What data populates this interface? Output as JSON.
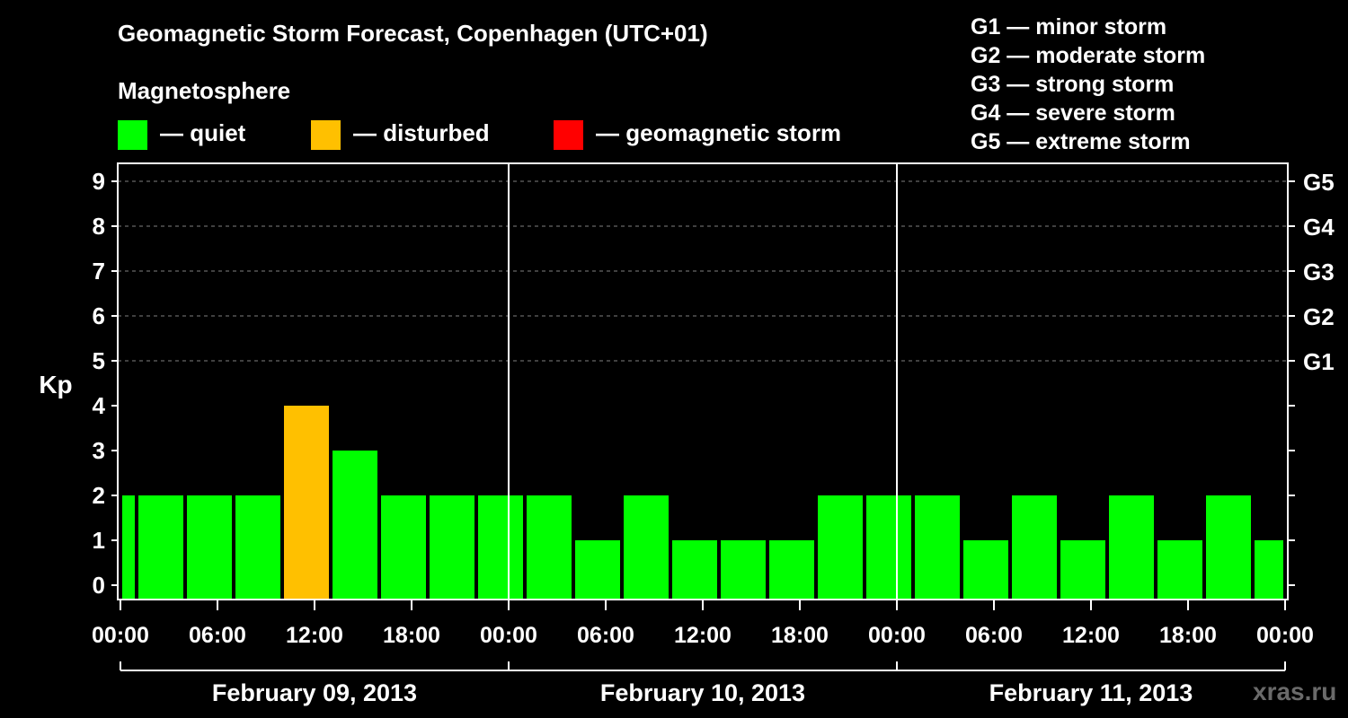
{
  "title": "Geomagnetic Storm Forecast, Copenhagen (UTC+01)",
  "subtitle": "Magnetosphere",
  "legend": [
    {
      "label": "— quiet",
      "color": "#00ff00"
    },
    {
      "label": "— disturbed",
      "color": "#ffc000"
    },
    {
      "label": "— geomagnetic storm",
      "color": "#ff0000"
    }
  ],
  "g_scale": [
    "G1 — minor storm",
    "G2 — moderate storm",
    "G3 — strong storm",
    "G4 — severe storm",
    "G5 — extreme storm"
  ],
  "watermark": "xras.ru",
  "chart_data": {
    "type": "bar",
    "ylabel": "Kp",
    "ylim": [
      0,
      9
    ],
    "y_ticks": [
      "0",
      "1",
      "2",
      "3",
      "4",
      "5",
      "6",
      "7",
      "8",
      "9"
    ],
    "right_ticks": [
      {
        "kp": 5,
        "label": "G1"
      },
      {
        "kp": 6,
        "label": "G2"
      },
      {
        "kp": 7,
        "label": "G3"
      },
      {
        "kp": 8,
        "label": "G4"
      },
      {
        "kp": 9,
        "label": "G5"
      }
    ],
    "x_ticks": [
      "00:00",
      "06:00",
      "12:00",
      "18:00",
      "00:00",
      "06:00",
      "12:00",
      "18:00",
      "00:00",
      "06:00",
      "12:00",
      "18:00",
      "00:00"
    ],
    "dates": [
      "February 09, 2013",
      "February 10, 2013",
      "February 11, 2013"
    ],
    "x_range_hours": [
      0,
      72
    ],
    "grid": "dashed horizontal lines at Kp 5-9",
    "bars": [
      {
        "start_hour": 0,
        "end_hour": 1,
        "kp": 2,
        "level": "quiet"
      },
      {
        "start_hour": 1,
        "end_hour": 4,
        "kp": 2,
        "level": "quiet"
      },
      {
        "start_hour": 4,
        "end_hour": 7,
        "kp": 2,
        "level": "quiet"
      },
      {
        "start_hour": 7,
        "end_hour": 10,
        "kp": 2,
        "level": "quiet"
      },
      {
        "start_hour": 10,
        "end_hour": 13,
        "kp": 4,
        "level": "disturbed"
      },
      {
        "start_hour": 13,
        "end_hour": 16,
        "kp": 3,
        "level": "quiet"
      },
      {
        "start_hour": 16,
        "end_hour": 19,
        "kp": 2,
        "level": "quiet"
      },
      {
        "start_hour": 19,
        "end_hour": 22,
        "kp": 2,
        "level": "quiet"
      },
      {
        "start_hour": 22,
        "end_hour": 25,
        "kp": 2,
        "level": "quiet"
      },
      {
        "start_hour": 25,
        "end_hour": 28,
        "kp": 2,
        "level": "quiet"
      },
      {
        "start_hour": 28,
        "end_hour": 31,
        "kp": 1,
        "level": "quiet"
      },
      {
        "start_hour": 31,
        "end_hour": 34,
        "kp": 2,
        "level": "quiet"
      },
      {
        "start_hour": 34,
        "end_hour": 37,
        "kp": 1,
        "level": "quiet"
      },
      {
        "start_hour": 37,
        "end_hour": 40,
        "kp": 1,
        "level": "quiet"
      },
      {
        "start_hour": 40,
        "end_hour": 43,
        "kp": 1,
        "level": "quiet"
      },
      {
        "start_hour": 43,
        "end_hour": 46,
        "kp": 2,
        "level": "quiet"
      },
      {
        "start_hour": 46,
        "end_hour": 49,
        "kp": 2,
        "level": "quiet"
      },
      {
        "start_hour": 49,
        "end_hour": 52,
        "kp": 2,
        "level": "quiet"
      },
      {
        "start_hour": 52,
        "end_hour": 55,
        "kp": 1,
        "level": "quiet"
      },
      {
        "start_hour": 55,
        "end_hour": 58,
        "kp": 2,
        "level": "quiet"
      },
      {
        "start_hour": 58,
        "end_hour": 61,
        "kp": 1,
        "level": "quiet"
      },
      {
        "start_hour": 61,
        "end_hour": 64,
        "kp": 2,
        "level": "quiet"
      },
      {
        "start_hour": 64,
        "end_hour": 67,
        "kp": 1,
        "level": "quiet"
      },
      {
        "start_hour": 67,
        "end_hour": 70,
        "kp": 2,
        "level": "quiet"
      },
      {
        "start_hour": 70,
        "end_hour": 72,
        "kp": 1,
        "level": "quiet"
      }
    ]
  }
}
